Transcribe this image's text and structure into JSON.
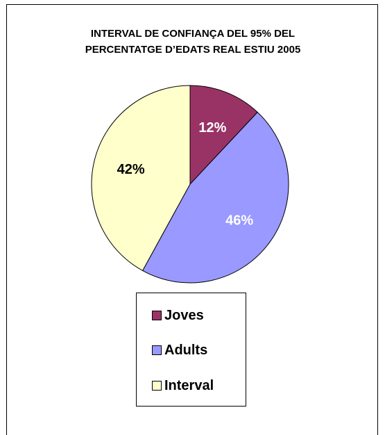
{
  "chart_data": {
    "type": "pie",
    "title": [
      "INTERVAL DE CONFIANÇA DEL 95%  DEL",
      "PERCENTATGE D’EDATS REAL ESTIU 2005"
    ],
    "categories": [
      "Joves",
      "Adults",
      "Interval"
    ],
    "values": [
      12,
      46,
      42
    ],
    "data_labels": [
      "12%",
      "46%",
      "42%"
    ],
    "colors": [
      "#993366",
      "#9999FF",
      "#FFFFCC"
    ],
    "label_colors": [
      "#FFFFFF",
      "#FFFFFF",
      "#000000"
    ],
    "legend_position": "bottom"
  }
}
